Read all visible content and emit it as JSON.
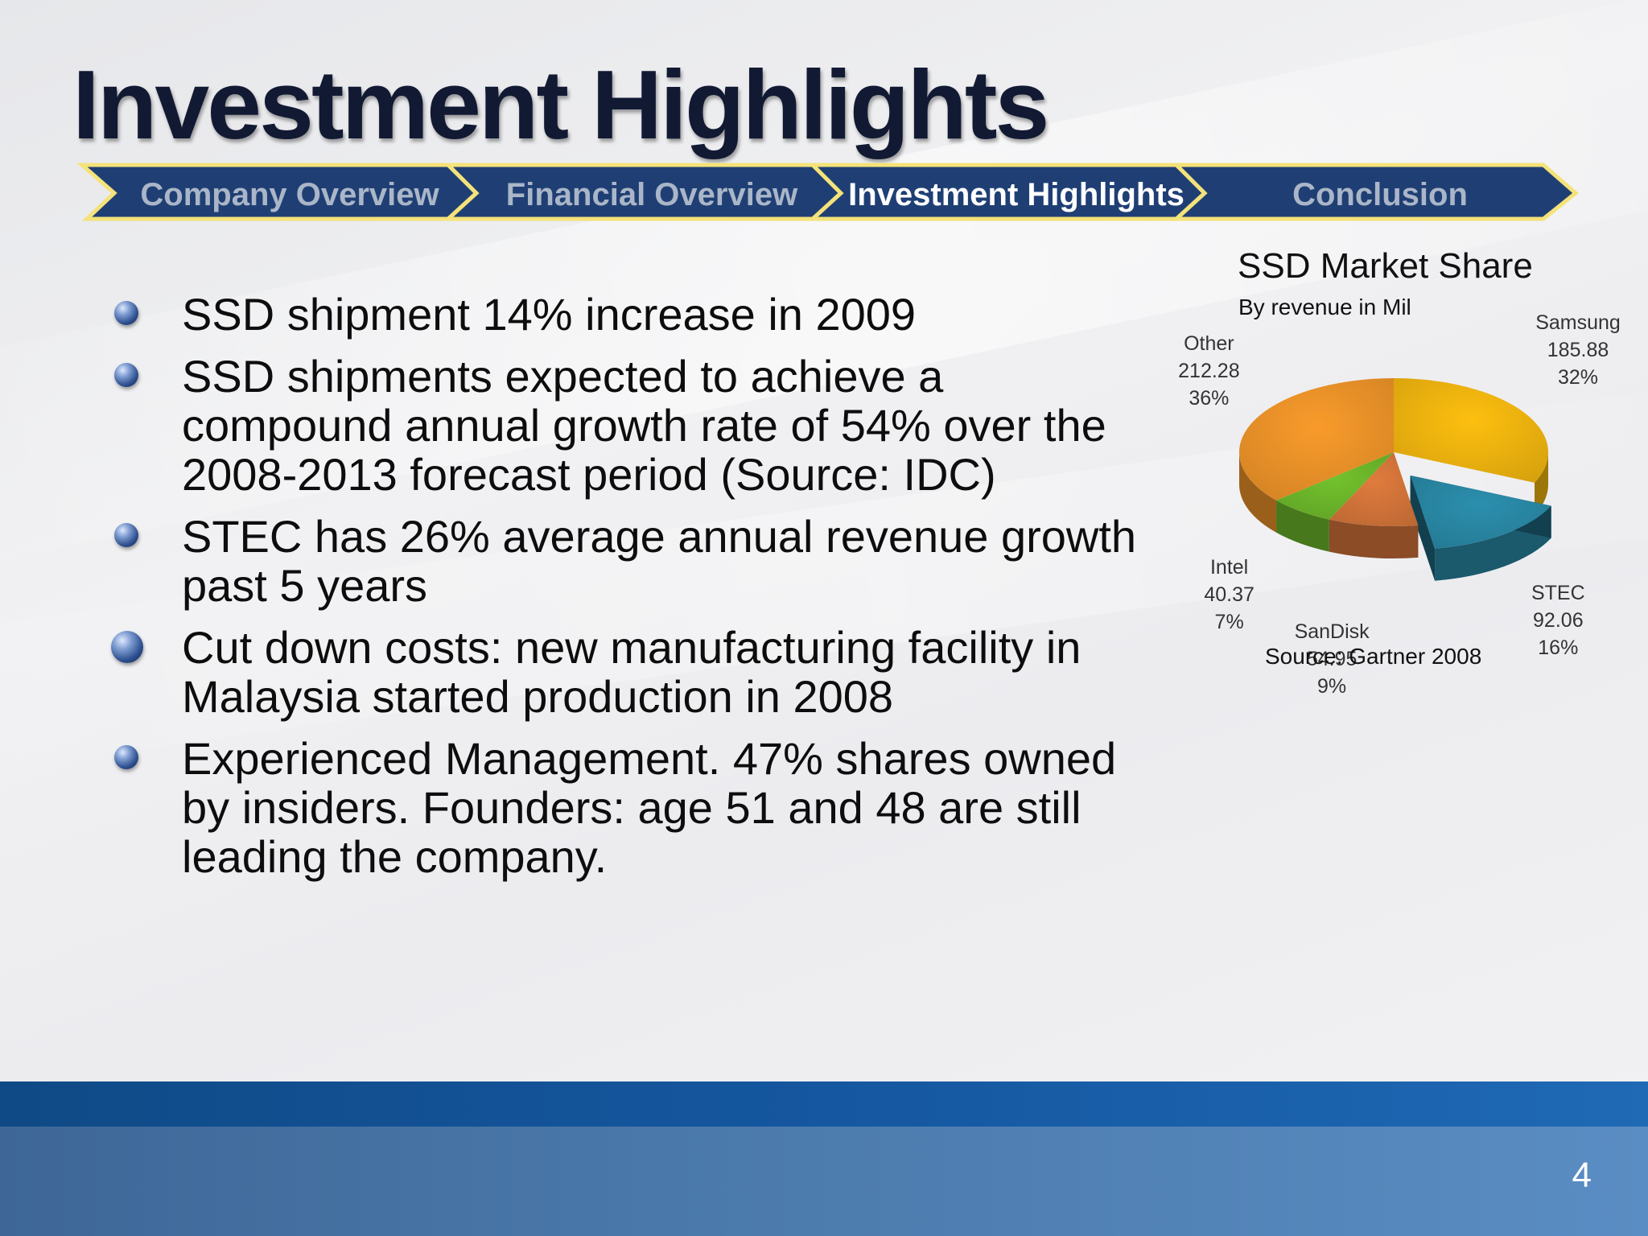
{
  "slide": {
    "title": "Investment Highlights",
    "page_number": "4"
  },
  "nav": {
    "items": [
      {
        "label": "Company Overview",
        "active": false
      },
      {
        "label": "Financial Overview",
        "active": false
      },
      {
        "label": "Investment Highlights",
        "active": true
      },
      {
        "label": "Conclusion",
        "active": false
      }
    ]
  },
  "bullets": [
    "SSD shipment 14% increase in 2009",
    "SSD shipments expected to achieve a compound annual growth rate of 54% over the 2008-2013 forecast period (Source: IDC)",
    "STEC has 26% average annual revenue growth past 5 years",
    "Cut down costs: new manufacturing facility in Malaysia started production in 2008",
    "Experienced Management. 47% shares owned by insiders. Founders: age 51 and 48 are still leading the company."
  ],
  "colors": {
    "nav_fill": "#1f3f74",
    "nav_border": "#f4e27a",
    "samsung": "#fdbf0f",
    "stec": "#2b8fae",
    "sandisk": "#e07b3d",
    "intel": "#72c12d",
    "other": "#f99b2b"
  },
  "chart_data": {
    "type": "pie",
    "title": "SSD Market Share",
    "subtitle": "By revenue in Mil",
    "source": "Source: Gartner 2008",
    "exploded": [
      "STEC"
    ],
    "style": "3d",
    "slices": [
      {
        "name": "Samsung",
        "value": "185.88",
        "pct": "32%",
        "color": "#fdbf0f"
      },
      {
        "name": "STEC",
        "value": "92.06",
        "pct": "16%",
        "color": "#2b8fae"
      },
      {
        "name": "SanDisk",
        "value": "54.95",
        "pct": "9%",
        "color": "#e07b3d"
      },
      {
        "name": "Intel",
        "value": "40.37",
        "pct": "7%",
        "color": "#72c12d"
      },
      {
        "name": "Other",
        "value": "212.28",
        "pct": "36%",
        "color": "#f99b2b"
      }
    ]
  }
}
